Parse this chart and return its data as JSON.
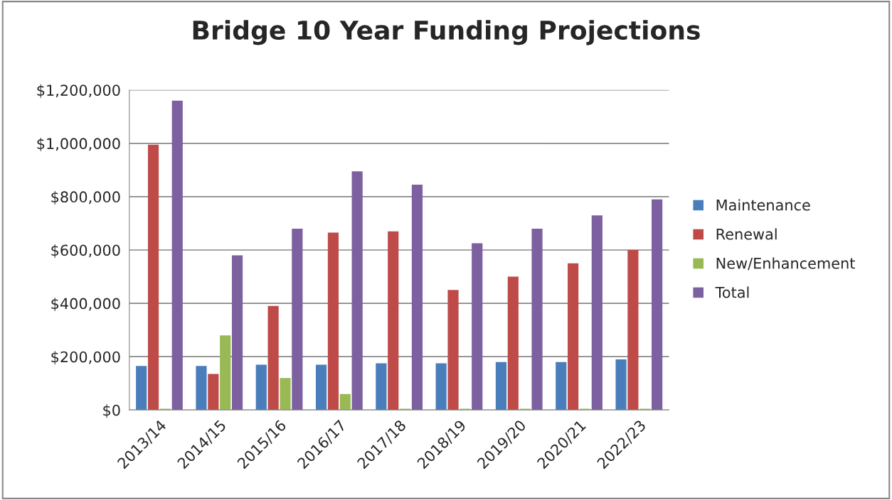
{
  "chart_data": {
    "type": "bar",
    "title": "Bridge 10 Year Funding Projections",
    "categories": [
      "2013/14",
      "2014/15",
      "2015/16",
      "2016/17",
      "2017/18",
      "2018/19",
      "2019/20",
      "2020/21",
      "2022/23"
    ],
    "series": [
      {
        "name": "Maintenance",
        "color": "#4a7ebb",
        "values": [
          165000,
          165000,
          170000,
          170000,
          175000,
          175000,
          180000,
          180000,
          190000
        ]
      },
      {
        "name": "Renewal",
        "color": "#be4b48",
        "values": [
          995000,
          135000,
          390000,
          665000,
          670000,
          450000,
          500000,
          550000,
          600000
        ]
      },
      {
        "name": "New/Enhancement",
        "color": "#98b954",
        "values": [
          5000,
          280000,
          120000,
          60000,
          5000,
          5000,
          5000,
          5000,
          5000
        ]
      },
      {
        "name": "Total",
        "color": "#7d60a0",
        "values": [
          1160000,
          580000,
          680000,
          895000,
          845000,
          625000,
          680000,
          730000,
          790000
        ]
      }
    ],
    "ylim": [
      0,
      1200000
    ],
    "yticks": [
      {
        "value": 0,
        "label": "$0"
      },
      {
        "value": 200000,
        "label": "$200,000"
      },
      {
        "value": 400000,
        "label": "$400,000"
      },
      {
        "value": 600000,
        "label": "$600,000"
      },
      {
        "value": 800000,
        "label": "$800,000"
      },
      {
        "value": 1000000,
        "label": "$1,000,000"
      },
      {
        "value": 1200000,
        "label": "$1,200,000"
      }
    ],
    "grid": "y",
    "legend": "right"
  }
}
